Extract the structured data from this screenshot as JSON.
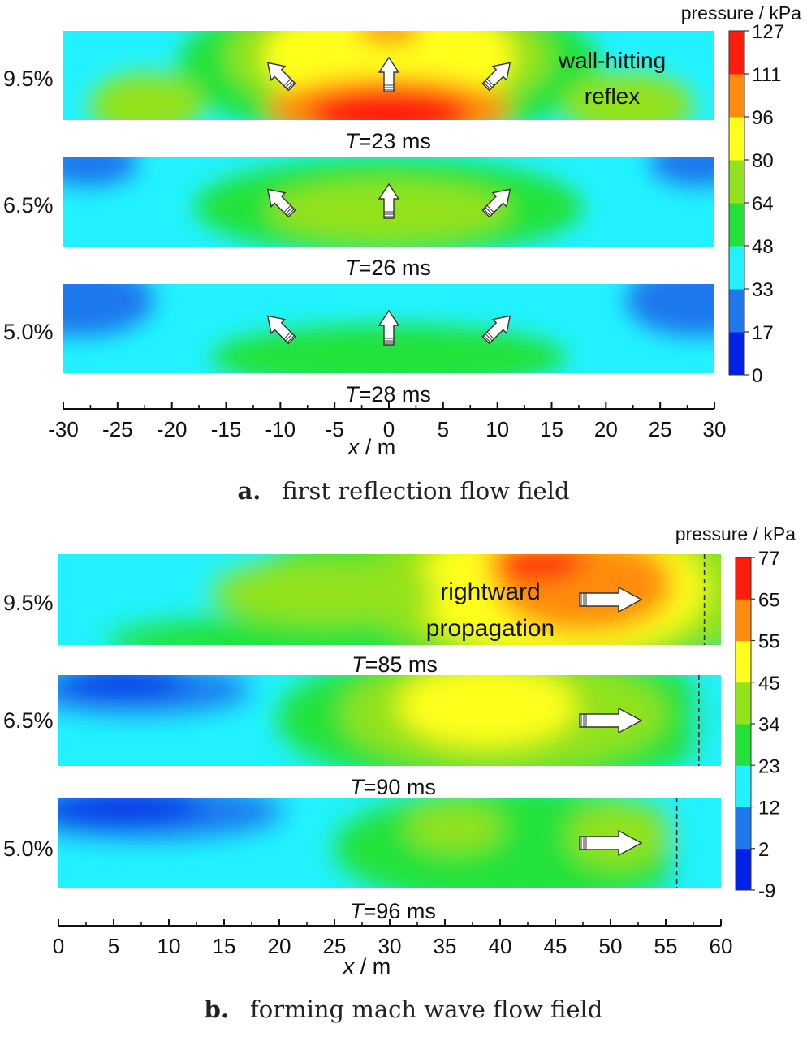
{
  "colors": {
    "contour": [
      "#0022e6",
      "#1f78ee",
      "#22f2ff",
      "#22e23a",
      "#92e21e",
      "#ffff1e",
      "#ff8c0e",
      "#ff1c0c"
    ],
    "axis": "#111111",
    "arrow_fill": "#ffffff",
    "arrow_stroke": "#333333",
    "marker_line": "#333333"
  },
  "icons": {
    "flow_arrow": "white-block-arrow-icon"
  },
  "chart_data": [
    {
      "type": "heatmap",
      "panel_id": "a",
      "caption_letter": "a.",
      "caption_text": "first reflection flow field",
      "xlabel_italic": "x",
      "xlabel_unit": " / m",
      "x_ticks": [
        -30,
        -25,
        -20,
        -15,
        -10,
        -5,
        0,
        5,
        10,
        15,
        20,
        25,
        30
      ],
      "xlim": [
        -30,
        30
      ],
      "colorbar_title": "pressure / kPa",
      "colorbar_ticks": [
        "127",
        "111",
        "96",
        "80",
        "64",
        "48",
        "33",
        "17",
        "0"
      ],
      "annotation": [
        "wall-hitting",
        "reflex"
      ],
      "rows": [
        {
          "ratio": "9.5%",
          "time_label_prefix": "T",
          "time_label_rest": "=23 ms",
          "arrows": [
            {
              "x": -10,
              "dir": "up-left"
            },
            {
              "x": 0,
              "dir": "up"
            },
            {
              "x": 10,
              "dir": "up-right"
            }
          ]
        },
        {
          "ratio": "6.5%",
          "time_label_prefix": "T",
          "time_label_rest": "=26 ms",
          "arrows": [
            {
              "x": -10,
              "dir": "up-left"
            },
            {
              "x": 0,
              "dir": "up"
            },
            {
              "x": 10,
              "dir": "up-right"
            }
          ]
        },
        {
          "ratio": "5.0%",
          "time_label_prefix": "T",
          "time_label_rest": "=28 ms",
          "arrows": [
            {
              "x": -10,
              "dir": "up-left"
            },
            {
              "x": 0,
              "dir": "up"
            },
            {
              "x": 10,
              "dir": "up-right"
            }
          ]
        }
      ]
    },
    {
      "type": "heatmap",
      "panel_id": "b",
      "caption_letter": "b.",
      "caption_text": "forming mach wave flow field",
      "xlabel_italic": "x",
      "xlabel_unit": " / m",
      "x_ticks": [
        0,
        5,
        10,
        15,
        20,
        25,
        30,
        35,
        40,
        45,
        50,
        55,
        60
      ],
      "xlim": [
        0,
        60
      ],
      "colorbar_title": "pressure / kPa",
      "colorbar_ticks": [
        "77",
        "65",
        "55",
        "45",
        "34",
        "23",
        "12",
        "2",
        "-9"
      ],
      "annotation": [
        "rightward",
        "propagation"
      ],
      "rows": [
        {
          "ratio": "9.5%",
          "time_label_prefix": "T",
          "time_label_rest": "=85 ms",
          "wavefront_x": 58.5,
          "arrows": [
            {
              "x": 50,
              "dir": "right"
            }
          ]
        },
        {
          "ratio": "6.5%",
          "time_label_prefix": "T",
          "time_label_rest": "=90 ms",
          "wavefront_x": 58,
          "arrows": [
            {
              "x": 50,
              "dir": "right"
            }
          ]
        },
        {
          "ratio": "5.0%",
          "time_label_prefix": "T",
          "time_label_rest": "=96 ms",
          "wavefront_x": 56,
          "arrows": [
            {
              "x": 50,
              "dir": "right"
            }
          ]
        }
      ]
    }
  ]
}
